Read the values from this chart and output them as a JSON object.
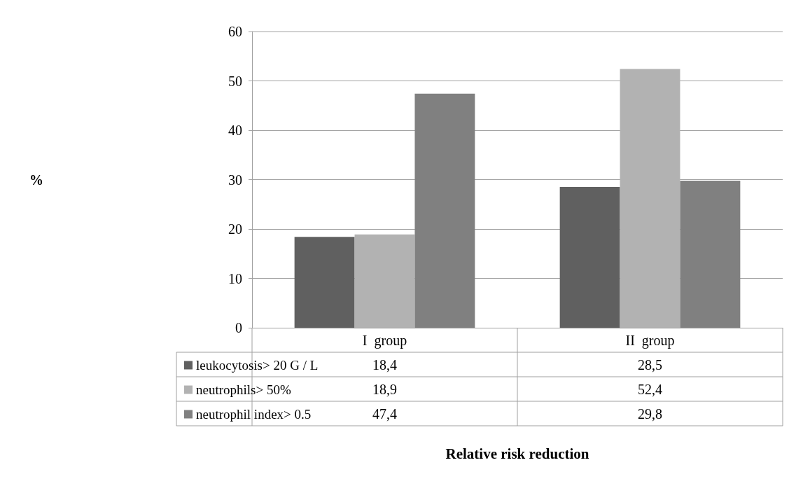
{
  "chart_data": {
    "type": "bar",
    "annotations": [
      "%",
      "Relative risk reduction"
    ],
    "categories": [
      "I  group",
      "II  group"
    ],
    "series": [
      {
        "name": "leukocytosis> 20 G / L",
        "color": "#606060",
        "values": [
          18.4,
          28.5
        ],
        "value_labels": [
          "18,4",
          "28,5"
        ]
      },
      {
        "name": "neutrophils> 50%",
        "color": "#b2b2b2",
        "values": [
          18.9,
          52.4
        ],
        "value_labels": [
          "18,9",
          "52,4"
        ]
      },
      {
        "name": "neutrophil index> 0.5",
        "color": "#808080",
        "values": [
          47.4,
          29.8
        ],
        "value_labels": [
          "47,4",
          "29,8"
        ]
      }
    ],
    "ylim": [
      0,
      60
    ],
    "yticks": [
      0,
      10,
      20,
      30,
      40,
      50,
      60
    ],
    "grid": "y",
    "legend": "bottom left"
  }
}
